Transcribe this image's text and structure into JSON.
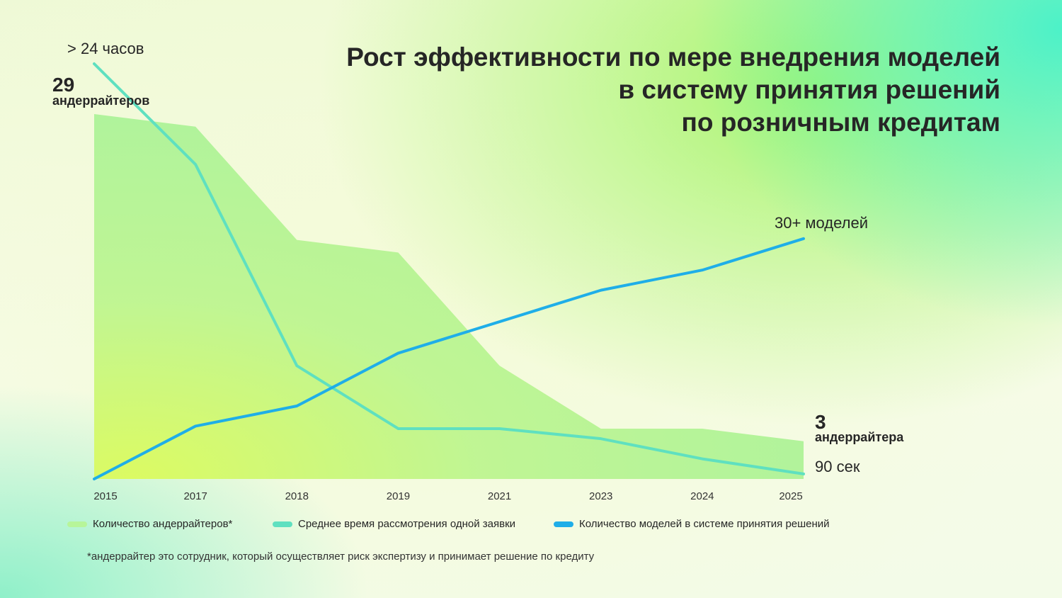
{
  "colors": {
    "area": "#b7f59a",
    "time_line": "#5fe0c0",
    "models_line": "#1faee8",
    "text": "#262626"
  },
  "title_lines": [
    "Рост эффективности по мере внедрения моделей",
    "в систему принятия решений",
    "по розничным кредитам"
  ],
  "annotations": {
    "time_start": "> 24 часов",
    "underwriters_start_value": "29",
    "underwriters_start_unit": "андеррайтеров",
    "models_end": "30+ моделей",
    "underwriters_end_value": "3",
    "underwriters_end_unit": "андеррайтера",
    "time_end": "90 сек"
  },
  "legend": [
    {
      "label": "Количество андеррайтеров*",
      "color": "#b7f59a"
    },
    {
      "label": "Среднее время рассмотрения одной заявки",
      "color": "#5fe0c0"
    },
    {
      "label": "Количество моделей в системе принятия решений",
      "color": "#1faee8"
    }
  ],
  "footnote": "*андеррайтер это сотрудник, который осуществляет риск экспертизу и принимает решение по кредиту",
  "chart_data": {
    "type": "area+line",
    "categories": [
      "2015",
      "2017",
      "2018",
      "2019",
      "2021",
      "2023",
      "2024",
      "2025"
    ],
    "ylim": [
      0,
      33
    ],
    "series": [
      {
        "name": "Количество андеррайтеров*",
        "kind": "area",
        "values": [
          29,
          28,
          19,
          18,
          9,
          4,
          4,
          3
        ]
      },
      {
        "name": "Среднее время рассмотрения одной заявки",
        "kind": "line",
        "values": [
          33,
          25,
          9,
          4,
          4,
          3.2,
          1.6,
          0.4
        ]
      },
      {
        "name": "Количество моделей в системе принятия решений",
        "kind": "line",
        "values": [
          0,
          4.2,
          5.8,
          10,
          12.5,
          15,
          16.6,
          19.1
        ]
      }
    ],
    "grid": false
  }
}
